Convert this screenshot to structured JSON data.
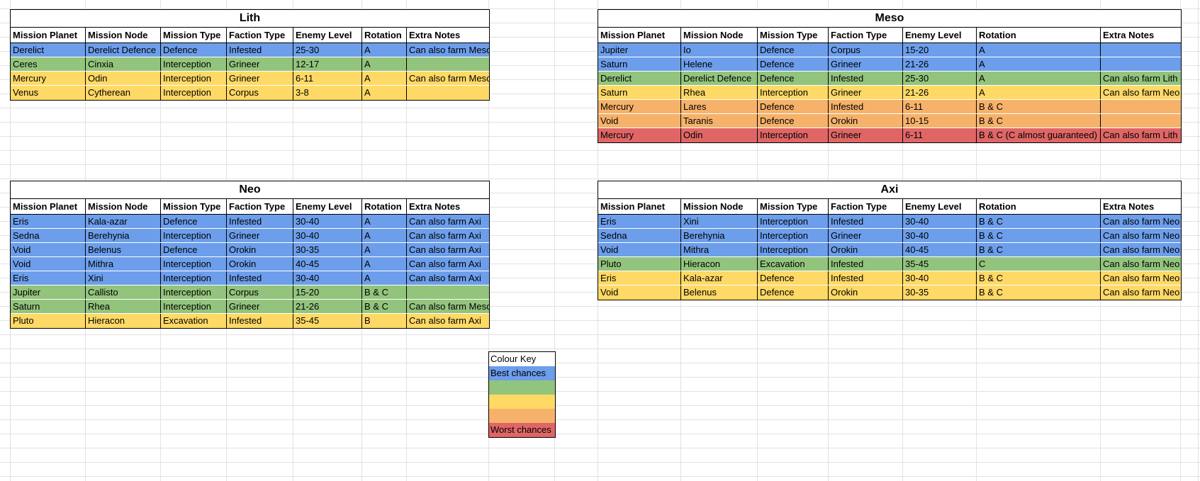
{
  "sheet": {
    "palette": {
      "blue": "#6d9eeb",
      "green": "#93c47d",
      "yellow": "#ffd966",
      "orange": "#f6b26b",
      "red": "#e06666",
      "gridline": "#e2e2e2"
    },
    "tables": [
      {
        "id": "lith",
        "title": "Lith",
        "columns": [
          "Mission Planet",
          "Mission Node",
          "Mission Type",
          "Faction Type",
          "Enemy Level",
          "Rotation",
          "Extra Notes"
        ],
        "rows": [
          {
            "color": "blue",
            "cells": [
              "Derelict",
              "Derelict Defence",
              "Defence",
              "Infested",
              "25-30",
              "A",
              "Can also farm Meso"
            ]
          },
          {
            "color": "green",
            "cells": [
              "Ceres",
              "Cinxia",
              "Interception",
              "Grineer",
              "12-17",
              "A",
              ""
            ]
          },
          {
            "color": "yellow",
            "cells": [
              "Mercury",
              "Odin",
              "Interception",
              "Grineer",
              "6-11",
              "A",
              "Can also farm Meso"
            ]
          },
          {
            "color": "yellow",
            "cells": [
              "Venus",
              "Cytherean",
              "Interception",
              "Corpus",
              "3-8",
              "A",
              ""
            ]
          }
        ]
      },
      {
        "id": "meso",
        "title": "Meso",
        "columns": [
          "Mission Planet",
          "Mission Node",
          "Mission Type",
          "Faction Type",
          "Enemy Level",
          "Rotation",
          "Extra Notes"
        ],
        "rows": [
          {
            "color": "blue",
            "cells": [
              "Jupiter",
              "Io",
              "Defence",
              "Corpus",
              "15-20",
              "A",
              ""
            ]
          },
          {
            "color": "blue",
            "cells": [
              "Saturn",
              "Helene",
              "Defence",
              "Grineer",
              "21-26",
              "A",
              ""
            ]
          },
          {
            "color": "green",
            "cells": [
              "Derelict",
              "Derelict Defence",
              "Defence",
              "Infested",
              "25-30",
              "A",
              "Can also farm Lith"
            ]
          },
          {
            "color": "yellow",
            "cells": [
              "Saturn",
              "Rhea",
              "Interception",
              "Grineer",
              "21-26",
              "A",
              "Can also farm Neo"
            ]
          },
          {
            "color": "orange",
            "cells": [
              "Mercury",
              "Lares",
              "Defence",
              "Infested",
              "6-11",
              "B & C",
              ""
            ]
          },
          {
            "color": "orange",
            "cells": [
              "Void",
              "Taranis",
              "Defence",
              "Orokin",
              "10-15",
              "B & C",
              ""
            ]
          },
          {
            "color": "red",
            "cells": [
              "Mercury",
              "Odin",
              "Interception",
              "Grineer",
              "6-11",
              "B & C (C almost guaranteed)",
              "Can also farm Lith"
            ]
          }
        ]
      },
      {
        "id": "neo",
        "title": "Neo",
        "columns": [
          "Mission Planet",
          "Mission Node",
          "Mission Type",
          "Faction Type",
          "Enemy Level",
          "Rotation",
          "Extra Notes"
        ],
        "rows": [
          {
            "color": "blue",
            "cells": [
              "Eris",
              "Kala-azar",
              "Defence",
              "Infested",
              "30-40",
              "A",
              "Can also farm Axi"
            ]
          },
          {
            "color": "blue",
            "cells": [
              "Sedna",
              "Berehynia",
              "Interception",
              "Grineer",
              "30-40",
              "A",
              "Can also farm Axi"
            ]
          },
          {
            "color": "blue",
            "cells": [
              "Void",
              "Belenus",
              "Defence",
              "Orokin",
              "30-35",
              "A",
              "Can also farm Axi"
            ]
          },
          {
            "color": "blue",
            "cells": [
              "Void",
              "Mithra",
              "Interception",
              "Orokin",
              "40-45",
              "A",
              "Can also farm Axi"
            ]
          },
          {
            "color": "blue",
            "cells": [
              "Eris",
              "Xini",
              "Interception",
              "Infested",
              "30-40",
              "A",
              "Can also farm Axi"
            ]
          },
          {
            "color": "green",
            "cells": [
              "Jupiter",
              "Callisto",
              "Interception",
              "Corpus",
              "15-20",
              "B & C",
              ""
            ]
          },
          {
            "color": "green",
            "cells": [
              "Saturn",
              "Rhea",
              "Interception",
              "Grineer",
              "21-26",
              "B & C",
              "Can also farm Meso"
            ]
          },
          {
            "color": "yellow",
            "cells": [
              "Pluto",
              "Hieracon",
              "Excavation",
              "Infested",
              "35-45",
              "B",
              "Can also farm Axi"
            ]
          }
        ]
      },
      {
        "id": "axi",
        "title": "Axi",
        "columns": [
          "Mission Planet",
          "Mission Node",
          "Mission Type",
          "Faction Type",
          "Enemy Level",
          "Rotation",
          "Extra Notes"
        ],
        "rows": [
          {
            "color": "blue",
            "cells": [
              "Eris",
              "Xini",
              "Interception",
              "Infested",
              "30-40",
              "B & C",
              "Can also farm Neo"
            ]
          },
          {
            "color": "blue",
            "cells": [
              "Sedna",
              "Berehynia",
              "Interception",
              "Grineer",
              "30-40",
              "B & C",
              "Can also farm Neo"
            ]
          },
          {
            "color": "blue",
            "cells": [
              "Void",
              "Mithra",
              "Interception",
              "Orokin",
              "40-45",
              "B & C",
              "Can also farm Neo"
            ]
          },
          {
            "color": "green",
            "cells": [
              "Pluto",
              "Hieracon",
              "Excavation",
              "Infested",
              "35-45",
              "C",
              "Can also farm Neo"
            ]
          },
          {
            "color": "yellow",
            "cells": [
              "Eris",
              "Kala-azar",
              "Defence",
              "Infested",
              "30-40",
              "B & C",
              "Can also farm Neo"
            ]
          },
          {
            "color": "yellow",
            "cells": [
              "Void",
              "Belenus",
              "Defence",
              "Orokin",
              "30-35",
              "B & C",
              "Can also farm Neo"
            ]
          }
        ]
      }
    ],
    "colour_key": {
      "title": "Colour Key",
      "entries": [
        {
          "color": "blue",
          "label": "Best chances"
        },
        {
          "color": "green",
          "label": ""
        },
        {
          "color": "yellow",
          "label": ""
        },
        {
          "color": "orange",
          "label": ""
        },
        {
          "color": "red",
          "label": "Worst chances"
        }
      ]
    }
  }
}
